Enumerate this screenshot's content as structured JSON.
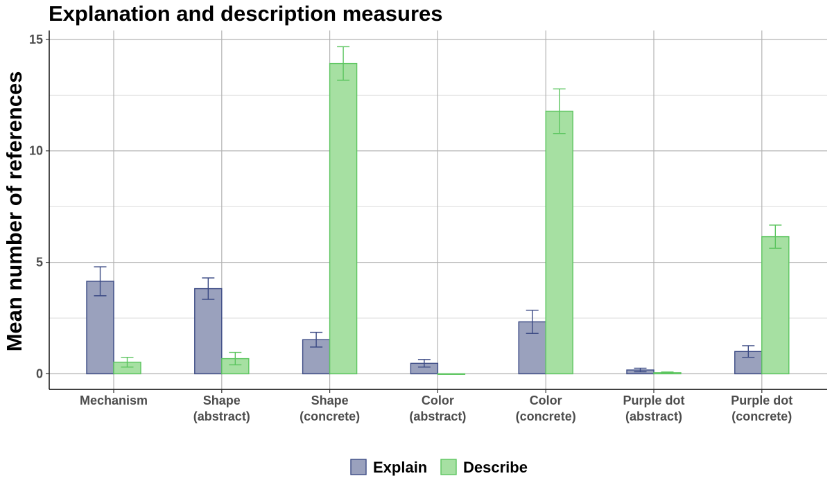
{
  "chart_data": {
    "type": "bar",
    "title": "Explanation and description measures",
    "xlabel": "",
    "ylabel": "Mean number of references",
    "ylim": [
      -0.7,
      15.4
    ],
    "yticks": [
      0,
      5,
      10,
      15
    ],
    "grid": true,
    "legend_position": "bottom",
    "categories": [
      [
        "Mechanism"
      ],
      [
        "Shape",
        "(abstract)"
      ],
      [
        "Shape",
        "(concrete)"
      ],
      [
        "Color",
        "(abstract)"
      ],
      [
        "Color",
        "(concrete)"
      ],
      [
        "Purple dot",
        "(abstract)"
      ],
      [
        "Purple dot",
        "(concrete)"
      ]
    ],
    "series": [
      {
        "name": "Explain",
        "fill": "#9aa1bd",
        "stroke": "#3b4a84",
        "values": [
          4.15,
          3.82,
          1.53,
          0.47,
          2.33,
          0.17,
          1.0
        ],
        "error": [
          0.65,
          0.48,
          0.33,
          0.17,
          0.52,
          0.08,
          0.26
        ]
      },
      {
        "name": "Describe",
        "fill": "#a6e0a2",
        "stroke": "#5cc55f",
        "values": [
          0.52,
          0.68,
          13.92,
          0.0,
          11.78,
          0.05,
          6.15
        ],
        "error": [
          0.22,
          0.28,
          0.75,
          0.0,
          1.0,
          0.03,
          0.52
        ]
      }
    ]
  }
}
